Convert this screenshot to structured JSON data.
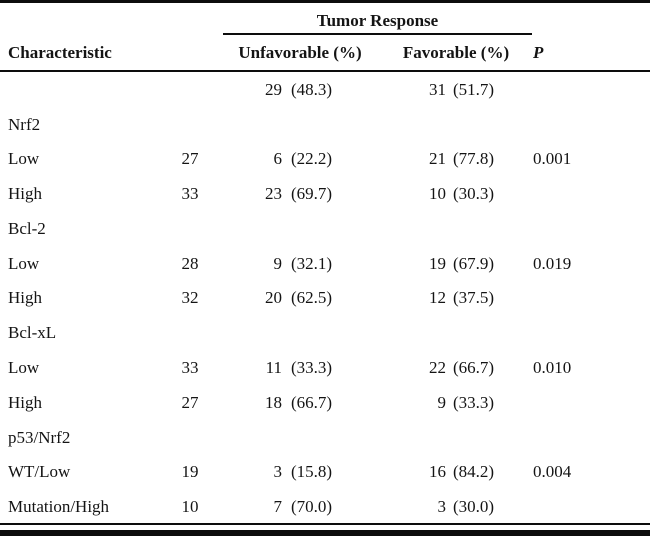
{
  "table": {
    "spanner_label": "Tumor Response",
    "columns": {
      "characteristic": "Characteristic",
      "unfavorable": "Unfavorable (%)",
      "favorable": "Favorable (%)",
      "p": "P"
    },
    "rows": [
      {
        "label": "",
        "n": "",
        "unf_n": "29",
        "unf_pct": "(48.3)",
        "fav_n": "31",
        "fav_pct": "(51.7)",
        "p": ""
      },
      {
        "label": "Nrf2",
        "n": "",
        "unf_n": "",
        "unf_pct": "",
        "fav_n": "",
        "fav_pct": "",
        "p": ""
      },
      {
        "label": "Low",
        "n": "27",
        "unf_n": "6",
        "unf_pct": "(22.2)",
        "fav_n": "21",
        "fav_pct": "(77.8)",
        "p": "0.001"
      },
      {
        "label": "High",
        "n": "33",
        "unf_n": "23",
        "unf_pct": "(69.7)",
        "fav_n": "10",
        "fav_pct": "(30.3)",
        "p": ""
      },
      {
        "label": "Bcl-2",
        "n": "",
        "unf_n": "",
        "unf_pct": "",
        "fav_n": "",
        "fav_pct": "",
        "p": ""
      },
      {
        "label": "Low",
        "n": "28",
        "unf_n": "9",
        "unf_pct": "(32.1)",
        "fav_n": "19",
        "fav_pct": "(67.9)",
        "p": "0.019"
      },
      {
        "label": "High",
        "n": "32",
        "unf_n": "20",
        "unf_pct": "(62.5)",
        "fav_n": "12",
        "fav_pct": "(37.5)",
        "p": ""
      },
      {
        "label": "Bcl-xL",
        "n": "",
        "unf_n": "",
        "unf_pct": "",
        "fav_n": "",
        "fav_pct": "",
        "p": ""
      },
      {
        "label": "Low",
        "n": "33",
        "unf_n": "11",
        "unf_pct": "(33.3)",
        "fav_n": "22",
        "fav_pct": "(66.7)",
        "p": "0.010"
      },
      {
        "label": "High",
        "n": "27",
        "unf_n": "18",
        "unf_pct": "(66.7)",
        "fav_n": "9",
        "fav_pct": "(33.3)",
        "p": ""
      },
      {
        "label": "p53/Nrf2",
        "n": "",
        "unf_n": "",
        "unf_pct": "",
        "fav_n": "",
        "fav_pct": "",
        "p": ""
      },
      {
        "label": "WT/Low",
        "n": "19",
        "unf_n": "3",
        "unf_pct": "(15.8)",
        "fav_n": "16",
        "fav_pct": "(84.2)",
        "p": "0.004"
      },
      {
        "label": "Mutation/High",
        "n": "10",
        "unf_n": "7",
        "unf_pct": "(70.0)",
        "fav_n": "3",
        "fav_pct": "(30.0)",
        "p": ""
      }
    ],
    "colors": {
      "rule": "#0d0d0d",
      "text": "#141414",
      "background": "#ffffff"
    }
  }
}
